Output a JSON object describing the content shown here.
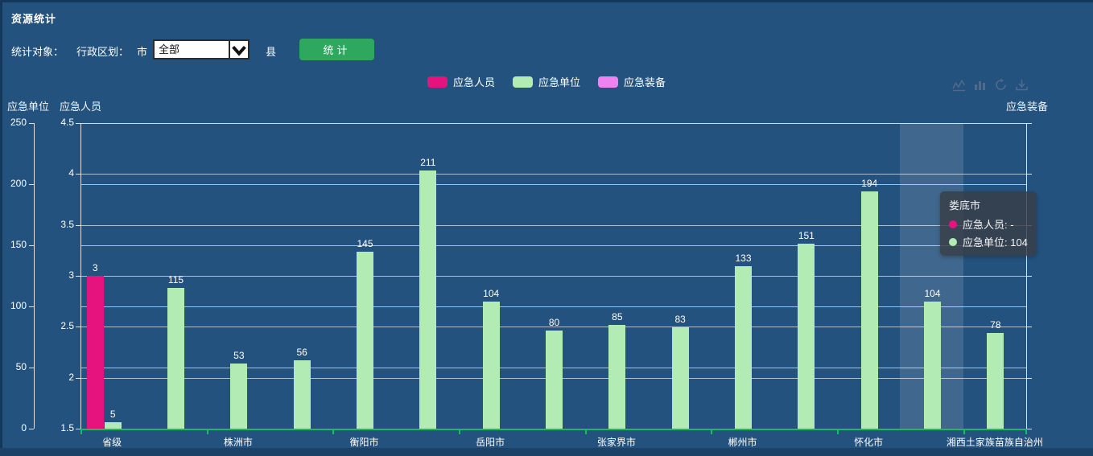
{
  "panel": {
    "title": "资源统计"
  },
  "controls": {
    "object_label": "统计对象：",
    "region_label": "行政区划：",
    "city_label": "市",
    "county_label": "县",
    "city_select_value": "全部",
    "submit_label": "统计"
  },
  "legend": {
    "items": [
      {
        "label": "应急人员",
        "color": "#E6127E"
      },
      {
        "label": "应急单位",
        "color": "#B2EBB4"
      },
      {
        "label": "应急装备",
        "color": "#EE82EE"
      }
    ]
  },
  "toolbox": {
    "icons": [
      "line-chart-icon",
      "bar-chart-icon",
      "restore-icon",
      "download-icon"
    ]
  },
  "axes": {
    "left_outer": {
      "name": "应急单位",
      "min": 0,
      "max": 250,
      "ticks": [
        "0",
        "50",
        "100",
        "150",
        "200",
        "250"
      ]
    },
    "left_inner": {
      "name": "应急人员",
      "min": 1.5,
      "max": 4.5,
      "ticks": [
        "1.5",
        "2",
        "2.5",
        "3",
        "3.5",
        "4",
        "4.5"
      ]
    },
    "right": {
      "name": "应急装备"
    }
  },
  "chart_data": {
    "type": "bar",
    "categories": [
      "省级",
      "",
      "株洲市",
      "",
      "衡阳市",
      "",
      "岳阳市",
      "",
      "张家界市",
      "",
      "郴州市",
      "",
      "怀化市",
      "娄底市",
      "湘西土家族苗族自治州"
    ],
    "visible_x_labels": [
      "省级",
      "株洲市",
      "衡阳市",
      "岳阳市",
      "张家界市",
      "郴州市",
      "怀化市",
      "湘西土家族苗族自治州"
    ],
    "series": [
      {
        "name": "应急人员",
        "color": "#E6127E",
        "axis": "left_inner",
        "values": [
          3,
          null,
          null,
          null,
          null,
          null,
          null,
          null,
          null,
          null,
          null,
          null,
          null,
          null,
          null
        ]
      },
      {
        "name": "应急单位",
        "color": "#B2EBB4",
        "axis": "left_outer",
        "values": [
          5,
          115,
          53,
          56,
          145,
          211,
          104,
          80,
          85,
          83,
          133,
          151,
          194,
          104,
          78
        ]
      },
      {
        "name": "应急装备",
        "color": "#EE82EE",
        "axis": "right",
        "values": []
      }
    ],
    "highlighted_category_index": 13,
    "ylim_left_outer": [
      0,
      250
    ],
    "ylim_left_inner": [
      1.5,
      4.5
    ],
    "grid": true,
    "legend_position": "top-center"
  },
  "tooltip": {
    "title": "娄底市",
    "items": [
      {
        "label": "应急人员",
        "value": "-",
        "color": "#E6127E"
      },
      {
        "label": "应急单位",
        "value": "104",
        "color": "#B2EBB4"
      }
    ]
  },
  "colors": {
    "background": "#24527E",
    "panel_edge": "#16375C",
    "bottom_strip": "#1D4267",
    "x_axis_green": "#17BE5E",
    "gridline": "#E4E9EF",
    "axis_line": "#DDE3EA",
    "bar_pink": "#EA127E",
    "bar_green": "#B2EBB4",
    "button_green": "#2EA85F",
    "highlight_band": "rgba(255,255,255,0.13)",
    "tooltip_bg": "rgba(56,61,69,0.82)"
  }
}
